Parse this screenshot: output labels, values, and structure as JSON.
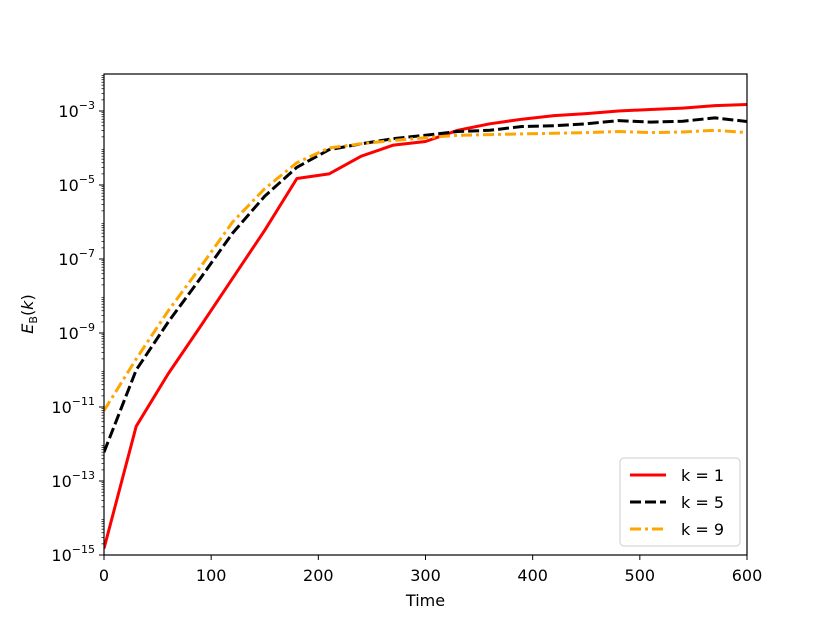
{
  "chart_data": {
    "type": "line",
    "xlabel": "Time",
    "ylabel": "E_B(k)",
    "xlim": [
      0,
      600
    ],
    "ylim": [
      1e-15,
      0.01
    ],
    "yscale": "log",
    "grid": false,
    "legend_position": "lower-right",
    "x_ticks": [
      "0",
      "100",
      "200",
      "300",
      "400",
      "500",
      "600"
    ],
    "y_tick_exponents": [
      "-15",
      "-13",
      "-11",
      "-9",
      "-7",
      "-5",
      "-3"
    ],
    "y_tick_base": "10",
    "series": [
      {
        "name": "k = 1",
        "color": "#ff0000",
        "dash": "solid",
        "x": [
          0,
          30,
          60,
          90,
          120,
          150,
          180,
          210,
          240,
          270,
          300,
          330,
          360,
          390,
          420,
          450,
          480,
          510,
          540,
          570,
          600
        ],
        "y": [
          1.5e-15,
          3e-12,
          8e-11,
          1.5e-09,
          3e-08,
          6e-07,
          1.5e-05,
          2e-05,
          6e-05,
          0.00012,
          0.00015,
          0.0003,
          0.00045,
          0.0006,
          0.00075,
          0.00085,
          0.001,
          0.0011,
          0.0012,
          0.0014,
          0.0015
        ]
      },
      {
        "name": "k = 5",
        "color": "#000000",
        "dash": "dashed",
        "x": [
          0,
          30,
          60,
          90,
          120,
          150,
          180,
          210,
          240,
          270,
          300,
          330,
          360,
          390,
          420,
          450,
          480,
          510,
          540,
          570,
          600
        ],
        "y": [
          6e-13,
          1e-10,
          2e-09,
          3e-08,
          5e-07,
          5e-06,
          3e-05,
          9e-05,
          0.00013,
          0.00018,
          0.00022,
          0.00028,
          0.0003,
          0.00038,
          0.0004,
          0.00045,
          0.00055,
          0.0005,
          0.00053,
          0.00065,
          0.00052
        ]
      },
      {
        "name": "k = 9",
        "color": "#ffa500",
        "dash": "dashdot",
        "x": [
          0,
          30,
          60,
          90,
          120,
          150,
          180,
          210,
          240,
          270,
          300,
          330,
          360,
          390,
          420,
          450,
          480,
          510,
          540,
          570,
          600
        ],
        "y": [
          8e-12,
          2e-10,
          4e-09,
          6e-08,
          1e-06,
          8e-06,
          4e-05,
          0.0001,
          0.00013,
          0.00016,
          0.00019,
          0.00022,
          0.00023,
          0.00024,
          0.00025,
          0.00026,
          0.00028,
          0.00026,
          0.00027,
          0.0003,
          0.00026
        ]
      }
    ]
  }
}
